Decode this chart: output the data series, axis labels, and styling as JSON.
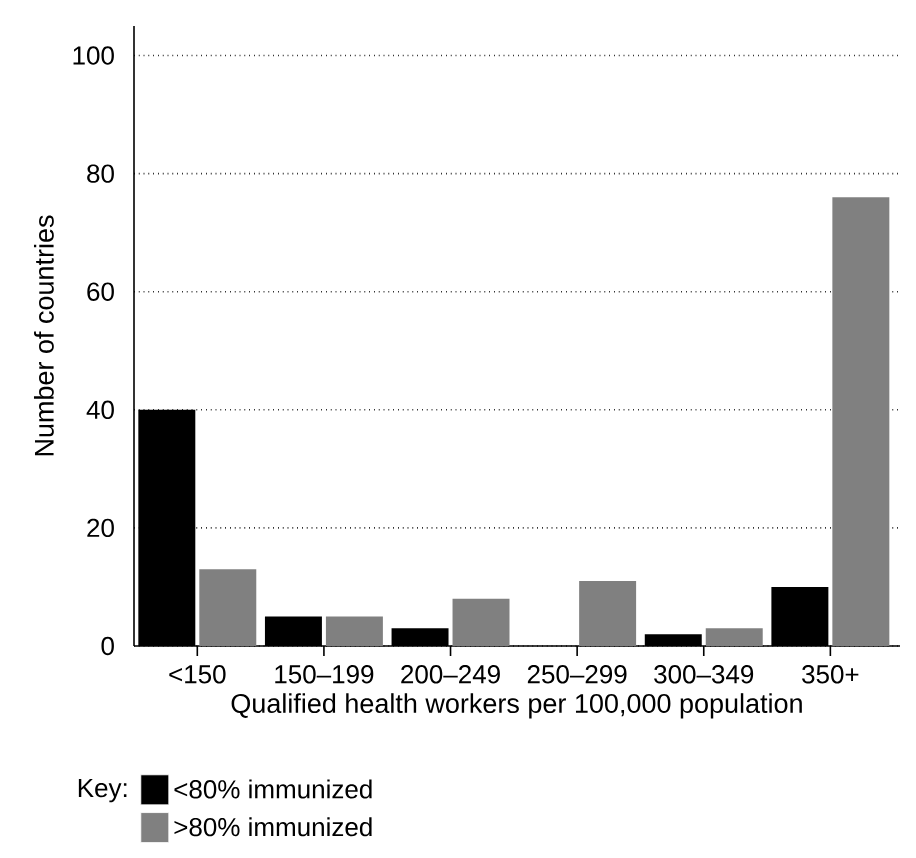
{
  "chart_data": {
    "type": "bar",
    "xlabel": "Qualified health workers per 100,000 population",
    "ylabel": "Number of countries",
    "legend_title": "Key:",
    "categories": [
      "<150",
      "150–199",
      "200–249",
      "250–299",
      "300–349",
      "350+"
    ],
    "series": [
      {
        "name": "<80% immunized",
        "color": "#000000",
        "values": [
          40,
          5,
          3,
          0,
          2,
          10
        ]
      },
      {
        "name": ">80% immunized",
        "color": "#808080",
        "values": [
          13,
          5,
          8,
          11,
          3,
          76
        ]
      }
    ],
    "ylim": [
      0,
      105
    ],
    "yticks": [
      0,
      20,
      40,
      60,
      80,
      100
    ],
    "grid": "y",
    "legend": "bottom"
  }
}
